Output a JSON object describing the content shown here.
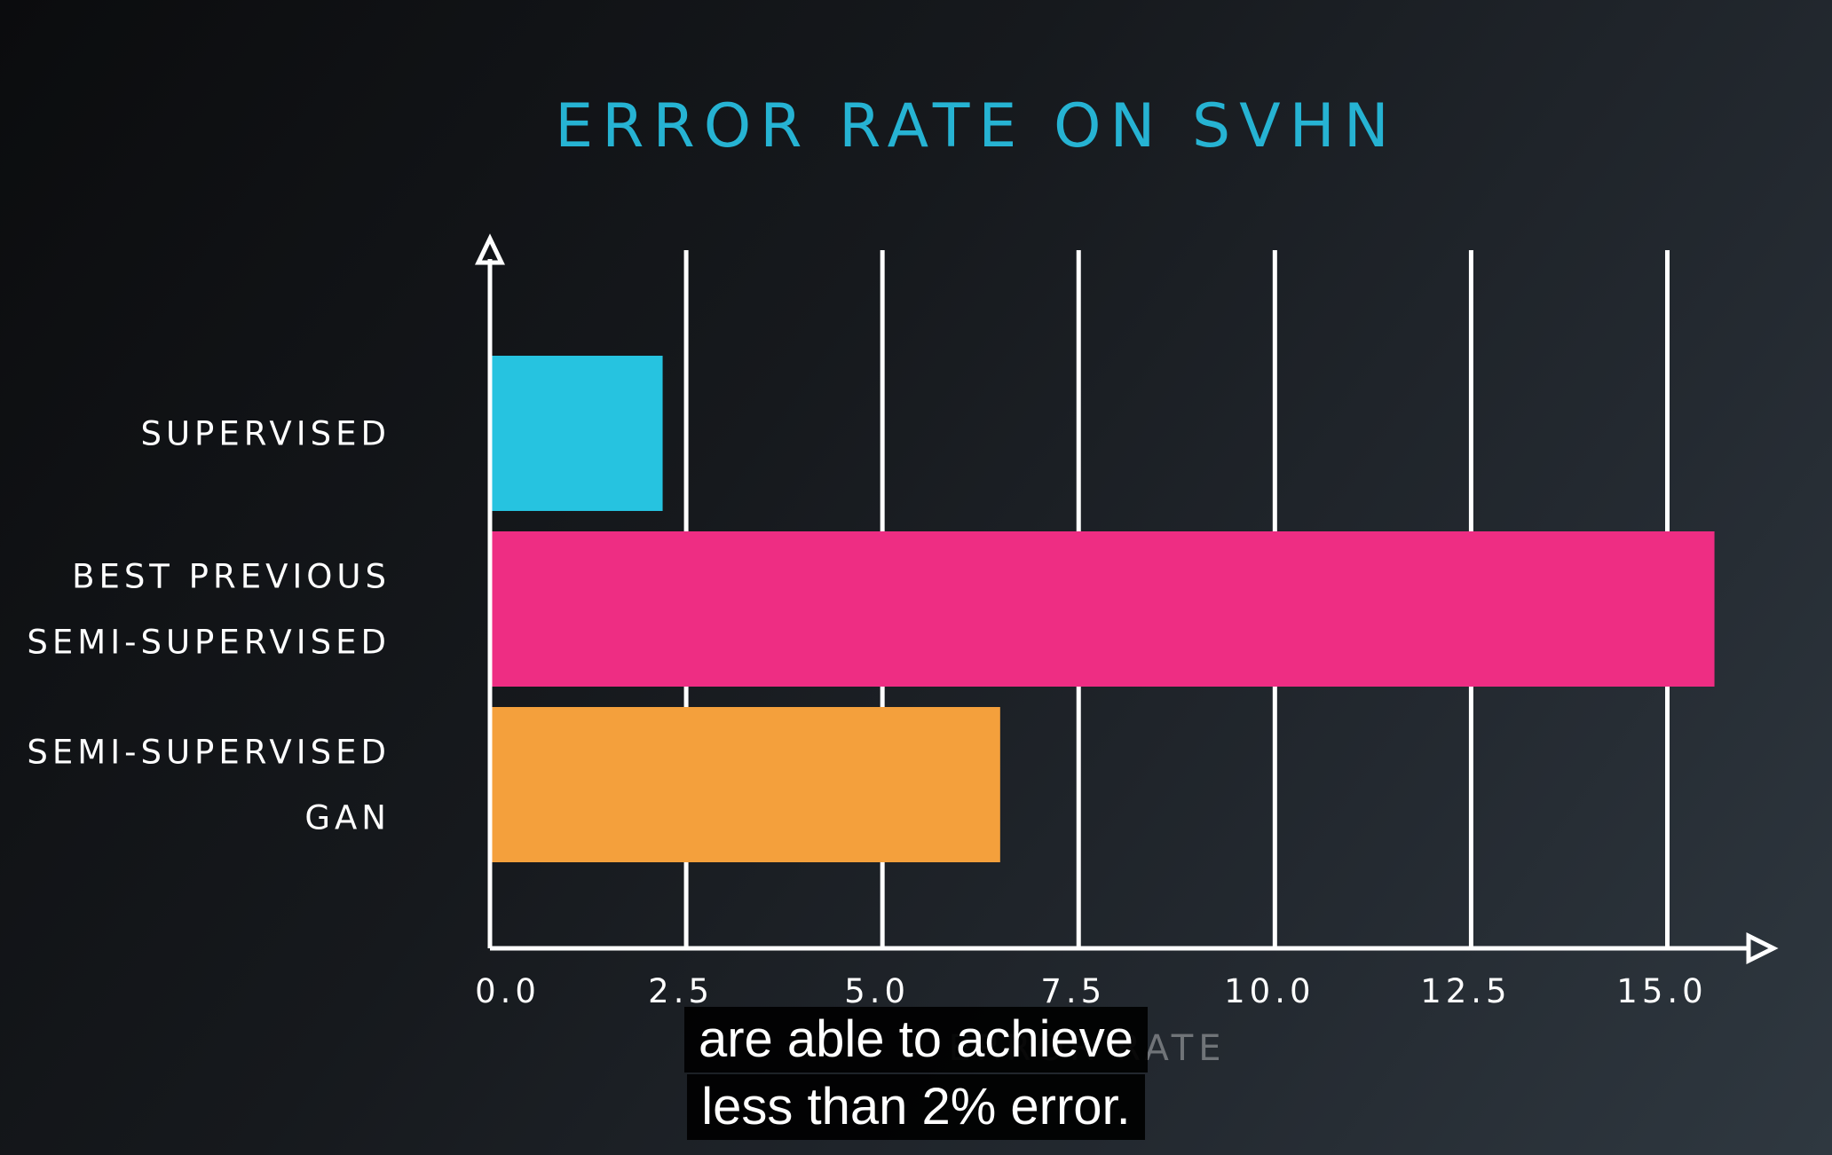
{
  "chart_data": {
    "type": "bar",
    "orientation": "horizontal",
    "title": "ERROR RATE ON SVHN",
    "xlabel": "ERROR RATE",
    "ylabel": "",
    "categories": [
      [
        "SUPERVISED"
      ],
      [
        "BEST PREVIOUS",
        "SEMI-SUPERVISED"
      ],
      [
        "SEMI-SUPERVISED",
        "GAN"
      ]
    ],
    "values": [
      2.2,
      15.6,
      6.5
    ],
    "bar_colors": [
      "#26c3e0",
      "#ee2d83",
      "#f4a03c"
    ],
    "x_ticks": [
      "0.0",
      "2.5",
      "5.0",
      "7.5",
      "10.0",
      "12.5",
      "15.0"
    ],
    "x_tick_values": [
      0,
      2.5,
      5.0,
      7.5,
      10.0,
      12.5,
      15.0
    ],
    "xlim": [
      0,
      16.6
    ],
    "grid": "vertical",
    "title_color": "#26b3d3"
  },
  "caption": {
    "lines": [
      "are able to achieve",
      "less than 2% error."
    ]
  }
}
